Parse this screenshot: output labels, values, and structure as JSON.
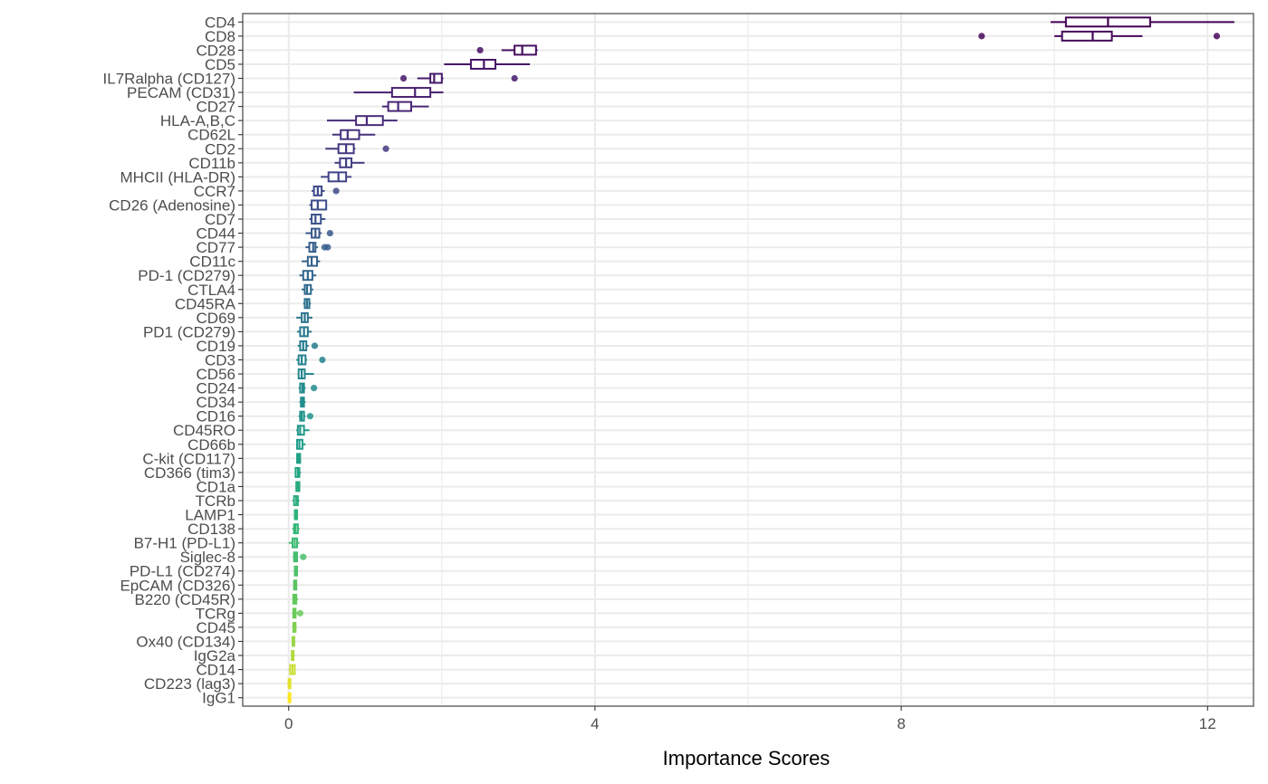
{
  "chart_data": {
    "type": "boxplot",
    "orientation": "horizontal",
    "title": "",
    "xlabel": "Importance Scores",
    "ylabel": "",
    "xlim": [
      -0.6,
      12.6
    ],
    "x_ticks": [
      0,
      4,
      8,
      12
    ],
    "x_tick_labels": [
      "0",
      "4",
      "8",
      "12"
    ],
    "grid": true,
    "legend": "none",
    "palette": "viridis",
    "categories": [
      "CD4",
      "CD8",
      "CD28",
      "CD5",
      "IL7Ralpha (CD127)",
      "PECAM (CD31)",
      "CD27",
      "HLA-A,B,C",
      "CD62L",
      "CD2",
      "CD11b",
      "MHCII (HLA-DR)",
      "CCR7",
      "CD26 (Adenosine)",
      "CD7",
      "CD44",
      "CD77",
      "CD11c",
      "PD-1 (CD279)",
      "CTLA4",
      "CD45RA",
      "CD69",
      "PD1 (CD279)",
      "CD19",
      "CD3",
      "CD56",
      "CD24",
      "CD34",
      "CD16",
      "CD45RO",
      "CD66b",
      "C-kit (CD117)",
      "CD366 (tim3)",
      "CD1a",
      "TCRb",
      "LAMP1",
      "CD138",
      "B7-H1 (PD-L1)",
      "Siglec-8",
      "PD-L1 (CD274)",
      "EpCAM (CD326)",
      "B220 (CD45R)",
      "TCRg",
      "CD45",
      "Ox40 (CD134)",
      "IgG2a",
      "CD14",
      "CD223 (lag3)",
      "IgG1"
    ],
    "boxes": [
      {
        "whisker_low": 9.95,
        "q1": 10.15,
        "median": 10.7,
        "q3": 11.25,
        "whisker_high": 12.35,
        "outliers": []
      },
      {
        "whisker_low": 10.0,
        "q1": 10.1,
        "median": 10.5,
        "q3": 10.75,
        "whisker_high": 11.15,
        "outliers": [
          9.05,
          12.12
        ]
      },
      {
        "whisker_low": 2.78,
        "q1": 2.95,
        "median": 3.05,
        "q3": 3.23,
        "whisker_high": 3.25,
        "outliers": [
          2.5
        ]
      },
      {
        "whisker_low": 2.03,
        "q1": 2.38,
        "median": 2.55,
        "q3": 2.7,
        "whisker_high": 3.15,
        "outliers": []
      },
      {
        "whisker_low": 1.68,
        "q1": 1.85,
        "median": 1.9,
        "q3": 2.0,
        "whisker_high": 2.02,
        "outliers": [
          1.5,
          2.95
        ]
      },
      {
        "whisker_low": 0.85,
        "q1": 1.35,
        "median": 1.65,
        "q3": 1.85,
        "whisker_high": 2.02,
        "outliers": []
      },
      {
        "whisker_low": 1.22,
        "q1": 1.3,
        "median": 1.43,
        "q3": 1.6,
        "whisker_high": 1.83,
        "outliers": []
      },
      {
        "whisker_low": 0.5,
        "q1": 0.88,
        "median": 1.02,
        "q3": 1.23,
        "whisker_high": 1.42,
        "outliers": []
      },
      {
        "whisker_low": 0.57,
        "q1": 0.68,
        "median": 0.77,
        "q3": 0.92,
        "whisker_high": 1.13,
        "outliers": []
      },
      {
        "whisker_low": 0.48,
        "q1": 0.65,
        "median": 0.75,
        "q3": 0.85,
        "whisker_high": 0.87,
        "outliers": [
          1.27
        ]
      },
      {
        "whisker_low": 0.6,
        "q1": 0.67,
        "median": 0.75,
        "q3": 0.82,
        "whisker_high": 0.99,
        "outliers": []
      },
      {
        "whisker_low": 0.42,
        "q1": 0.52,
        "median": 0.65,
        "q3": 0.75,
        "whisker_high": 0.82,
        "outliers": []
      },
      {
        "whisker_low": 0.3,
        "q1": 0.33,
        "median": 0.38,
        "q3": 0.43,
        "whisker_high": 0.47,
        "outliers": [
          0.62
        ]
      },
      {
        "whisker_low": 0.27,
        "q1": 0.3,
        "median": 0.38,
        "q3": 0.49,
        "whisker_high": 0.5,
        "outliers": []
      },
      {
        "whisker_low": 0.27,
        "q1": 0.3,
        "median": 0.35,
        "q3": 0.42,
        "whisker_high": 0.48,
        "outliers": []
      },
      {
        "whisker_low": 0.22,
        "q1": 0.3,
        "median": 0.35,
        "q3": 0.4,
        "whisker_high": 0.43,
        "outliers": [
          0.54
        ]
      },
      {
        "whisker_low": 0.22,
        "q1": 0.27,
        "median": 0.32,
        "q3": 0.35,
        "whisker_high": 0.38,
        "outliers": [
          0.47,
          0.51
        ]
      },
      {
        "whisker_low": 0.17,
        "q1": 0.25,
        "median": 0.3,
        "q3": 0.37,
        "whisker_high": 0.41,
        "outliers": []
      },
      {
        "whisker_low": 0.14,
        "q1": 0.19,
        "median": 0.25,
        "q3": 0.31,
        "whisker_high": 0.36,
        "outliers": []
      },
      {
        "whisker_low": 0.17,
        "q1": 0.21,
        "median": 0.24,
        "q3": 0.29,
        "whisker_high": 0.32,
        "outliers": []
      },
      {
        "whisker_low": 0.19,
        "q1": 0.21,
        "median": 0.24,
        "q3": 0.27,
        "whisker_high": 0.29,
        "outliers": []
      },
      {
        "whisker_low": 0.1,
        "q1": 0.17,
        "median": 0.21,
        "q3": 0.25,
        "whisker_high": 0.31,
        "outliers": []
      },
      {
        "whisker_low": 0.11,
        "q1": 0.15,
        "median": 0.2,
        "q3": 0.25,
        "whisker_high": 0.3,
        "outliers": []
      },
      {
        "whisker_low": 0.12,
        "q1": 0.15,
        "median": 0.19,
        "q3": 0.23,
        "whisker_high": 0.26,
        "outliers": [
          0.34
        ]
      },
      {
        "whisker_low": 0.1,
        "q1": 0.13,
        "median": 0.17,
        "q3": 0.22,
        "whisker_high": 0.24,
        "outliers": [
          0.44
        ]
      },
      {
        "whisker_low": 0.12,
        "q1": 0.13,
        "median": 0.17,
        "q3": 0.21,
        "whisker_high": 0.33,
        "outliers": []
      },
      {
        "whisker_low": 0.13,
        "q1": 0.15,
        "median": 0.18,
        "q3": 0.2,
        "whisker_high": 0.22,
        "outliers": [
          0.33
        ]
      },
      {
        "whisker_low": 0.14,
        "q1": 0.16,
        "median": 0.18,
        "q3": 0.2,
        "whisker_high": 0.22,
        "outliers": []
      },
      {
        "whisker_low": 0.13,
        "q1": 0.15,
        "median": 0.17,
        "q3": 0.2,
        "whisker_high": 0.22,
        "outliers": [
          0.28
        ]
      },
      {
        "whisker_low": 0.1,
        "q1": 0.12,
        "median": 0.15,
        "q3": 0.2,
        "whisker_high": 0.27,
        "outliers": []
      },
      {
        "whisker_low": 0.1,
        "q1": 0.11,
        "median": 0.14,
        "q3": 0.18,
        "whisker_high": 0.22,
        "outliers": []
      },
      {
        "whisker_low": 0.1,
        "q1": 0.11,
        "median": 0.13,
        "q3": 0.15,
        "whisker_high": 0.16,
        "outliers": []
      },
      {
        "whisker_low": 0.08,
        "q1": 0.09,
        "median": 0.12,
        "q3": 0.14,
        "whisker_high": 0.16,
        "outliers": []
      },
      {
        "whisker_low": 0.09,
        "q1": 0.1,
        "median": 0.12,
        "q3": 0.14,
        "whisker_high": 0.15,
        "outliers": []
      },
      {
        "whisker_low": 0.05,
        "q1": 0.07,
        "median": 0.1,
        "q3": 0.12,
        "whisker_high": 0.14,
        "outliers": []
      },
      {
        "whisker_low": 0.07,
        "q1": 0.08,
        "median": 0.1,
        "q3": 0.11,
        "whisker_high": 0.12,
        "outliers": []
      },
      {
        "whisker_low": 0.05,
        "q1": 0.07,
        "median": 0.09,
        "q3": 0.12,
        "whisker_high": 0.14,
        "outliers": []
      },
      {
        "whisker_low": 0.0,
        "q1": 0.05,
        "median": 0.08,
        "q3": 0.11,
        "whisker_high": 0.14,
        "outliers": []
      },
      {
        "whisker_low": 0.06,
        "q1": 0.07,
        "median": 0.09,
        "q3": 0.11,
        "whisker_high": 0.12,
        "outliers": [
          0.19
        ]
      },
      {
        "whisker_low": 0.07,
        "q1": 0.08,
        "median": 0.09,
        "q3": 0.11,
        "whisker_high": 0.12,
        "outliers": []
      },
      {
        "whisker_low": 0.06,
        "q1": 0.07,
        "median": 0.08,
        "q3": 0.1,
        "whisker_high": 0.11,
        "outliers": []
      },
      {
        "whisker_low": 0.05,
        "q1": 0.06,
        "median": 0.08,
        "q3": 0.1,
        "whisker_high": 0.12,
        "outliers": []
      },
      {
        "whisker_low": 0.05,
        "q1": 0.06,
        "median": 0.08,
        "q3": 0.09,
        "whisker_high": 0.11,
        "outliers": [
          0.15
        ]
      },
      {
        "whisker_low": 0.05,
        "q1": 0.06,
        "median": 0.07,
        "q3": 0.09,
        "whisker_high": 0.1,
        "outliers": []
      },
      {
        "whisker_low": 0.04,
        "q1": 0.05,
        "median": 0.06,
        "q3": 0.07,
        "whisker_high": 0.08,
        "outliers": []
      },
      {
        "whisker_low": 0.03,
        "q1": 0.04,
        "median": 0.05,
        "q3": 0.06,
        "whisker_high": 0.08,
        "outliers": []
      },
      {
        "whisker_low": 0.0,
        "q1": 0.02,
        "median": 0.05,
        "q3": 0.08,
        "whisker_high": 0.09,
        "outliers": []
      },
      {
        "whisker_low": 0.0,
        "q1": 0.0,
        "median": 0.0,
        "q3": 0.01,
        "whisker_high": 0.02,
        "outliers": []
      },
      {
        "whisker_low": 0.0,
        "q1": 0.0,
        "median": 0.0,
        "q3": 0.01,
        "whisker_high": 0.02,
        "outliers": []
      }
    ]
  }
}
